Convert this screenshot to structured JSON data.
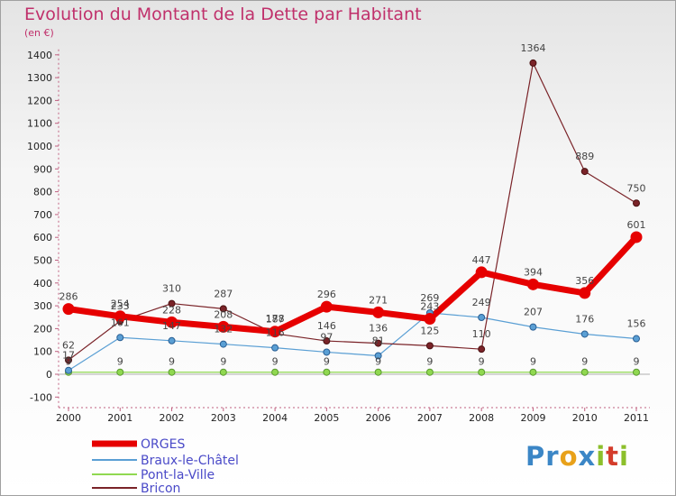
{
  "title": "Evolution du Montant de la Dette par Habitant",
  "subtitle": "(en €)",
  "logo": "Proxiti",
  "colors": {
    "orges": "#e60000",
    "braux": "#5a9fd4",
    "pont": "#90d850",
    "bricon": "#7a2328",
    "title": "#c0306b"
  },
  "chart_data": {
    "type": "line",
    "title": "Evolution du Montant de la Dette par Habitant",
    "ylabel": "(en €)",
    "xlabel": "",
    "x": [
      "2000",
      "2001",
      "2002",
      "2003",
      "2004",
      "2005",
      "2006",
      "2007",
      "2008",
      "2009",
      "2010",
      "2011"
    ],
    "ylim": [
      -100,
      1400
    ],
    "yticks": [
      -100,
      0,
      100,
      200,
      300,
      400,
      500,
      600,
      700,
      800,
      900,
      1000,
      1100,
      1200,
      1300,
      1400
    ],
    "grid": false,
    "legend": "bottom-left",
    "series": [
      {
        "name": "ORGES",
        "values": [
          286,
          254,
          228,
          208,
          187,
          296,
          271,
          243,
          447,
          394,
          356,
          601
        ]
      },
      {
        "name": "Braux-le-Châtel",
        "values": [
          17,
          161,
          147,
          132,
          116,
          97,
          81,
          269,
          249,
          207,
          176,
          156
        ]
      },
      {
        "name": "Pont-la-Ville",
        "values": [
          9,
          9,
          9,
          9,
          9,
          9,
          9,
          9,
          9,
          9,
          9,
          9
        ]
      },
      {
        "name": "Bricon",
        "values": [
          62,
          233,
          310,
          287,
          178,
          146,
          136,
          125,
          110,
          1364,
          889,
          750
        ]
      }
    ]
  }
}
